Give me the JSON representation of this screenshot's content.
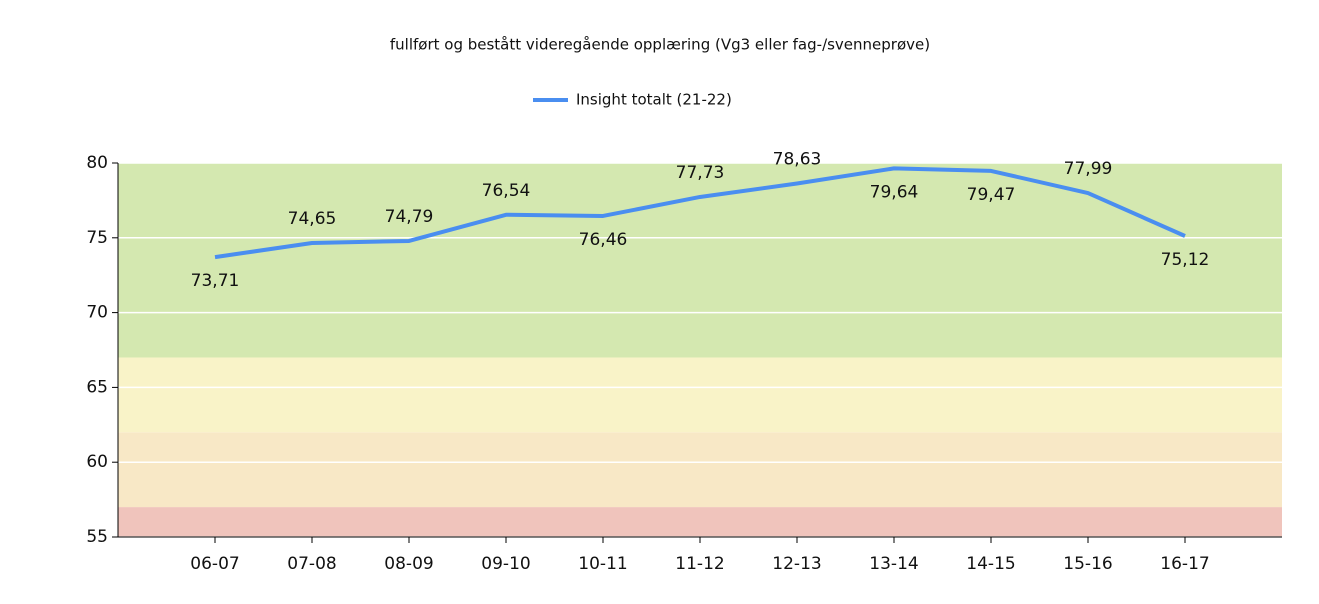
{
  "chart_data": {
    "type": "line",
    "title": "fullført og bestått videregående opplæring (Vg3 eller fag-/svenneprøve)",
    "categories": [
      "06-07",
      "07-08",
      "08-09",
      "09-10",
      "10-11",
      "11-12",
      "12-13",
      "13-14",
      "14-15",
      "15-16",
      "16-17"
    ],
    "series": [
      {
        "name": "Insight totalt (21-22)",
        "color": "#4a8ef0",
        "values": [
          73.71,
          74.65,
          74.79,
          76.54,
          76.46,
          77.73,
          78.63,
          79.64,
          79.47,
          77.99,
          75.12
        ],
        "value_labels": [
          "73,71",
          "74,65",
          "74,79",
          "76,54",
          "76,46",
          "77,73",
          "78,63",
          "79,64",
          "79,47",
          "77,99",
          "75,12"
        ]
      }
    ],
    "ylim": [
      55,
      80
    ],
    "yticks": [
      55,
      60,
      65,
      70,
      75,
      80
    ],
    "grid": true,
    "bands": [
      {
        "from": 55,
        "to": 57,
        "color": "#f0c4bc"
      },
      {
        "from": 57,
        "to": 62,
        "color": "#f8e8c6"
      },
      {
        "from": 62,
        "to": 67,
        "color": "#f9f3c8"
      },
      {
        "from": 67,
        "to": 80,
        "color": "#d4e8b0"
      }
    ]
  }
}
